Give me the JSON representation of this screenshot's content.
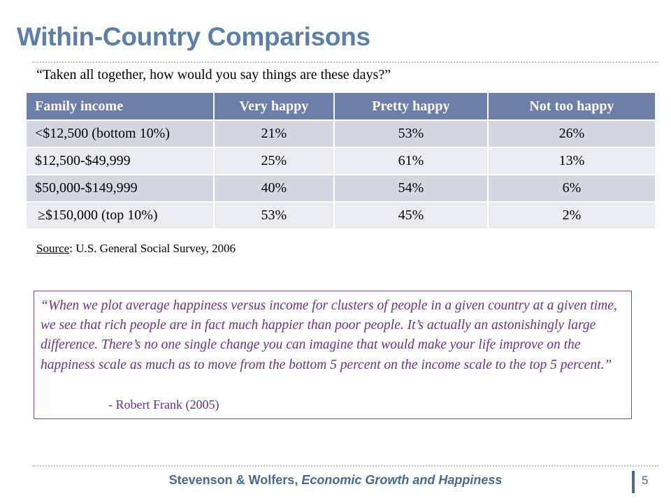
{
  "title": "Within-Country Comparisons",
  "question": "“Taken all together, how would you say things are these days?”",
  "table": {
    "headers": [
      "Family income",
      "Very happy",
      "Pretty happy",
      "Not too happy"
    ],
    "rows": [
      [
        "<$12,500 (bottom 10%)",
        "21%",
        "53%",
        "26%"
      ],
      [
        "$12,500-$49,999",
        "25%",
        "61%",
        "13%"
      ],
      [
        "$50,000-$149,999",
        "40%",
        "54%",
        "6%"
      ],
      [
        "≥$150,000 (top 10%)",
        "53%",
        "45%",
        "2%"
      ]
    ]
  },
  "source": {
    "label": "Source",
    "text": ": U.S. General Social Survey, 2006"
  },
  "quote": {
    "text": "“When we plot average happiness versus income for clusters of people in a given country at a given time, we see that rich people are in fact much happier than poor people.  It’s actually an astonishingly large difference.  There’s no one single change you can imagine that would make your life improve on the happiness scale as much as to move from the bottom 5 percent on the income scale to the top 5 percent.”",
    "attribution": "- Robert Frank (2005)"
  },
  "footer": {
    "authors": "Stevenson & Wolfers, ",
    "work": "Economic Growth and Happiness",
    "page": "5"
  },
  "colors": {
    "title": "#5b7fa6",
    "header_bg": "#6e7fa7",
    "row_odd": "#d4d7e2",
    "row_even": "#ebecf1",
    "quote": "#6b3388"
  }
}
